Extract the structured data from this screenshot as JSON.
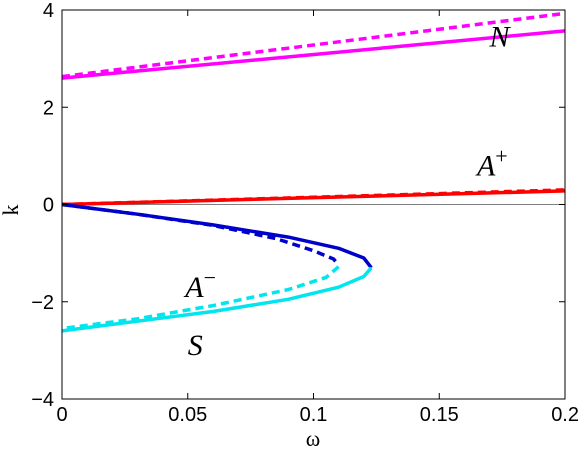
{
  "chart_data": {
    "type": "line",
    "title": "",
    "xlabel": "ω",
    "ylabel": "k",
    "xlim": [
      0,
      0.2
    ],
    "ylim": [
      -4,
      4
    ],
    "xticks": [
      "0",
      "0.05",
      "0.1",
      "0.15",
      "0.2"
    ],
    "yticks": [
      "4",
      "2",
      "0",
      "−2",
      "−4"
    ],
    "xtick_values": [
      0,
      0.05,
      0.1,
      0.15,
      0.2
    ],
    "ytick_values": [
      4,
      2,
      0,
      -2,
      -4
    ],
    "grid": false,
    "reference_line": {
      "y": 0,
      "color": "#808080"
    },
    "series": [
      {
        "key": "N-solid",
        "color": "#ff00ff",
        "style": "solid",
        "x": [
          0,
          0.2
        ],
        "y": [
          2.6,
          3.57
        ]
      },
      {
        "key": "N-dashed",
        "color": "#ff00ff",
        "style": "dashed",
        "x": [
          0,
          0.2
        ],
        "y": [
          2.63,
          3.93
        ]
      },
      {
        "key": "A+-solid",
        "color": "#ff0000",
        "style": "solid",
        "x": [
          0,
          0.2
        ],
        "y": [
          0.0,
          0.28
        ]
      },
      {
        "key": "A+-dashed",
        "color": "#ff0000",
        "style": "dashed",
        "x": [
          0,
          0.2
        ],
        "y": [
          0.0,
          0.3
        ]
      },
      {
        "key": "A--solid",
        "color": "#0000cc",
        "style": "solid",
        "x": [
          0,
          0.03,
          0.06,
          0.09,
          0.11,
          0.12,
          0.123
        ],
        "y": [
          0,
          -0.2,
          -0.42,
          -0.67,
          -0.9,
          -1.1,
          -1.3
        ]
      },
      {
        "key": "A--dashed",
        "color": "#0000cc",
        "style": "dashed",
        "x": [
          0,
          0.03,
          0.06,
          0.085,
          0.1,
          0.108,
          0.11
        ],
        "y": [
          0,
          -0.2,
          -0.43,
          -0.7,
          -0.95,
          -1.12,
          -1.25
        ]
      },
      {
        "key": "S-solid",
        "color": "#00e5ee",
        "style": "solid",
        "x": [
          0.123,
          0.12,
          0.11,
          0.09,
          0.06,
          0.03,
          0
        ],
        "y": [
          -1.3,
          -1.48,
          -1.7,
          -1.95,
          -2.2,
          -2.4,
          -2.6
        ]
      },
      {
        "key": "S-dashed",
        "color": "#00e5ee",
        "style": "dashed",
        "x": [
          0.11,
          0.105,
          0.09,
          0.06,
          0.03,
          0
        ],
        "y": [
          -1.28,
          -1.5,
          -1.75,
          -2.08,
          -2.35,
          -2.55
        ]
      }
    ],
    "annotations": [
      {
        "key": "N",
        "base": "N",
        "sup": "",
        "x": 0.17,
        "y": 3.25
      },
      {
        "key": "Aplus",
        "base": "A",
        "sup": "+",
        "x": 0.165,
        "y": 0.6
      },
      {
        "key": "Aminus",
        "base": "A",
        "sup": "−",
        "x": 0.049,
        "y": -1.9
      },
      {
        "key": "S",
        "base": "S",
        "sup": "",
        "x": 0.05,
        "y": -3.1
      }
    ]
  }
}
